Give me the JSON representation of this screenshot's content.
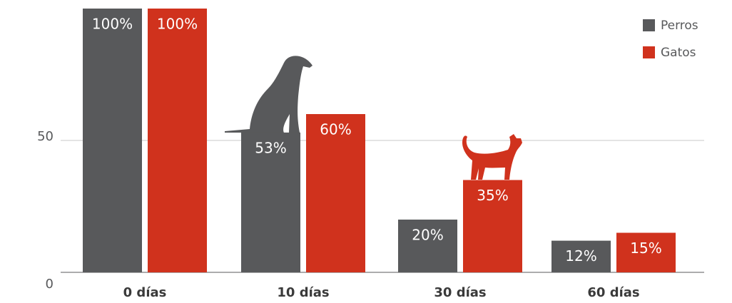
{
  "chart_data": {
    "type": "bar",
    "categories": [
      "0 días",
      "10 días",
      "30 días",
      "60 días"
    ],
    "series": [
      {
        "name": "Perros",
        "color": "#58595b",
        "values": [
          100,
          53,
          20,
          12
        ],
        "value_labels": [
          "100%",
          "53%",
          "20%",
          "12%"
        ]
      },
      {
        "name": "Gatos",
        "color": "#d0321d",
        "values": [
          100,
          60,
          35,
          15
        ],
        "value_labels": [
          "100%",
          "60%",
          "35%",
          "15%"
        ]
      }
    ],
    "ylim": [
      0,
      100
    ],
    "yticks": [
      0,
      50
    ],
    "grid": true,
    "legend": "top-right"
  }
}
